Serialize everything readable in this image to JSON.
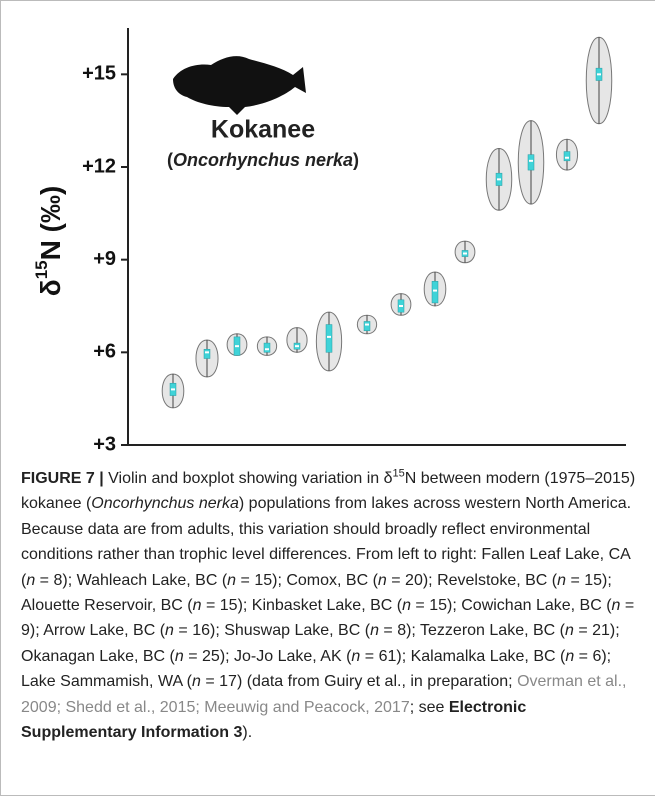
{
  "chart_data": {
    "type": "violin",
    "y_label": {
      "prefix": "δ",
      "sup": "15",
      "suffix": "N (‰)"
    },
    "annotations": [
      "Kokanee",
      "(",
      "Oncorhynchus nerka",
      ")"
    ],
    "categories": [
      null,
      null,
      null,
      null,
      null,
      null,
      null,
      null,
      null,
      null,
      null,
      null,
      null,
      null
    ],
    "min": [
      4.2,
      5.2,
      5.9,
      5.9,
      6.0,
      5.4,
      6.6,
      7.2,
      7.5,
      8.9,
      10.6,
      10.8,
      11.9,
      13.4
    ],
    "q1": [
      4.6,
      5.8,
      5.9,
      6.0,
      6.1,
      6.0,
      6.7,
      7.3,
      7.6,
      9.1,
      11.4,
      11.9,
      12.2,
      14.8
    ],
    "median": [
      4.8,
      6.0,
      6.2,
      6.1,
      6.2,
      6.5,
      6.9,
      7.5,
      8.0,
      9.2,
      11.6,
      12.2,
      12.3,
      15.0
    ],
    "q3": [
      5.0,
      6.1,
      6.5,
      6.3,
      6.3,
      6.9,
      7.0,
      7.7,
      8.3,
      9.3,
      11.8,
      12.4,
      12.5,
      15.2
    ],
    "max": [
      5.3,
      6.4,
      6.6,
      6.5,
      6.8,
      7.3,
      7.2,
      7.9,
      8.6,
      9.6,
      12.6,
      13.5,
      12.9,
      16.2
    ],
    "violin_color": "#e6e6e6",
    "box_color": "#3fd3d8",
    "ylim": [
      3,
      16.5
    ],
    "yticks": [
      {
        "value": 3,
        "label": "+3"
      },
      {
        "value": 6,
        "label": "+6"
      },
      {
        "value": 9,
        "label": "+9"
      },
      {
        "value": 12,
        "label": "+12"
      },
      {
        "value": 15,
        "label": "+15"
      }
    ]
  },
  "caption": [
    {
      "text": "FIGURE 7 |",
      "style": "bold"
    },
    {
      "text": " Violin and boxplot showing variation in δ",
      "style": "normal"
    },
    {
      "text": "15",
      "style": "sup"
    },
    {
      "text": "N between modern (1975–2015) kokanee (",
      "style": "normal"
    },
    {
      "text": "Oncorhynchus nerka",
      "style": "italic"
    },
    {
      "text": ") populations from lakes across western North America. Because data are from adults, this variation should broadly reflect environmental conditions rather than trophic level differences. From left to right: Fallen Leaf Lake, CA (",
      "style": "normal"
    },
    {
      "text": "n",
      "style": "italic"
    },
    {
      "text": " = 8); Wahleach Lake, BC (",
      "style": "normal"
    },
    {
      "text": "n",
      "style": "italic"
    },
    {
      "text": " = 15); Comox, BC (",
      "style": "normal"
    },
    {
      "text": "n",
      "style": "italic"
    },
    {
      "text": " = 20); Revelstoke, BC (",
      "style": "normal"
    },
    {
      "text": "n",
      "style": "italic"
    },
    {
      "text": " = 15); Alouette Reservoir, BC (",
      "style": "normal"
    },
    {
      "text": "n",
      "style": "italic"
    },
    {
      "text": " = 15); Kinbasket Lake, BC (",
      "style": "normal"
    },
    {
      "text": "n",
      "style": "italic"
    },
    {
      "text": " = 15); Cowichan Lake, BC (",
      "style": "normal"
    },
    {
      "text": "n",
      "style": "italic"
    },
    {
      "text": " = 9); Arrow Lake, BC (",
      "style": "normal"
    },
    {
      "text": "n",
      "style": "italic"
    },
    {
      "text": " = 16); Shuswap Lake, BC (",
      "style": "normal"
    },
    {
      "text": "n",
      "style": "italic"
    },
    {
      "text": " = 8); Tezzeron Lake, BC (",
      "style": "normal"
    },
    {
      "text": "n",
      "style": "italic"
    },
    {
      "text": " = 21); Okanagan Lake, BC (",
      "style": "normal"
    },
    {
      "text": "n",
      "style": "italic"
    },
    {
      "text": " = 25); Jo-Jo Lake, AK (",
      "style": "normal"
    },
    {
      "text": "n",
      "style": "italic"
    },
    {
      "text": " = 61); Kalamalka Lake, BC (",
      "style": "normal"
    },
    {
      "text": "n",
      "style": "italic"
    },
    {
      "text": " = 6); Lake Sammamish, WA (",
      "style": "normal"
    },
    {
      "text": "n",
      "style": "italic"
    },
    {
      "text": " = 17) (data from Guiry et al., in preparation; ",
      "style": "normal"
    },
    {
      "text": "Overman et al., 2009; Shedd et al., 2015; Meeuwig and Peacock, 2017",
      "style": "gray"
    },
    {
      "text": "; see ",
      "style": "normal"
    },
    {
      "text": "Electronic Supplementary Information 3",
      "style": "bold"
    },
    {
      "text": ").",
      "style": "normal"
    }
  ]
}
